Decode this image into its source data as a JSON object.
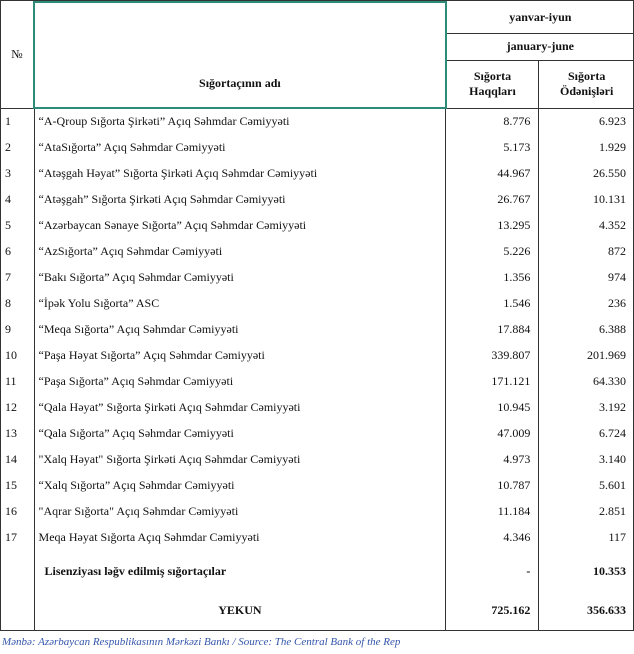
{
  "header": {
    "number": "№",
    "name": "Sığortaçının adı",
    "period_az": "yanvar-iyun",
    "period_en": "january-june",
    "premiums": "Sığorta Haqqları",
    "payments": "Sığorta Ödənişləri"
  },
  "table": {
    "rows": [
      [
        1,
        "“A-Qroup Sığorta Şirkəti” Açıq Səhmdar Cəmiyyəti",
        "8.776",
        "6.923"
      ],
      [
        2,
        "“AtaSığorta” Açıq Səhmdar Cəmiyyəti",
        "5.173",
        "1.929"
      ],
      [
        3,
        "“Atəşgah Həyat” Sığorta Şirkəti Açıq Səhmdar Cəmiyyəti",
        "44.967",
        "26.550"
      ],
      [
        4,
        "“Atəşgah” Sığorta Şirkəti Açıq Səhmdar Cəmiyyəti",
        "26.767",
        "10.131"
      ],
      [
        5,
        "“Azərbaycan Sənaye Sığorta” Açıq Səhmdar Cəmiyyəti",
        "13.295",
        "4.352"
      ],
      [
        6,
        "“AzSığorta” Açıq Səhmdar Cəmiyyəti",
        "5.226",
        "872"
      ],
      [
        7,
        "“Bakı Sığorta” Açıq Səhmdar Cəmiyyəti",
        "1.356",
        "974"
      ],
      [
        8,
        "“İpək Yolu Sığorta” ASC",
        "1.546",
        "236"
      ],
      [
        9,
        "“Meqa Sığorta” Açıq Səhmdar Cəmiyyəti",
        "17.884",
        "6.388"
      ],
      [
        10,
        "“Paşa Həyat Sığorta” Açıq Səhmdar Cəmiyyəti",
        "339.807",
        "201.969"
      ],
      [
        11,
        "“Paşa Sığorta” Açıq Səhmdar Cəmiyyəti",
        "171.121",
        "64.330"
      ],
      [
        12,
        "“Qala Həyat” Sığorta Şirkəti Açıq Səhmdar Cəmiyyəti",
        "10.945",
        "3.192"
      ],
      [
        13,
        "“Qala Sığorta” Açıq Səhmdar Cəmiyyəti",
        "47.009",
        "6.724"
      ],
      [
        14,
        "\"Xalq Həyat\" Sığorta Şirkəti Açıq Səhmdar Cəmiyyəti",
        "4.973",
        "3.140"
      ],
      [
        15,
        "“Xalq Sığorta” Açıq Səhmdar Cəmiyyəti",
        "10.787",
        "5.601"
      ],
      [
        16,
        "\"Aqrar Sığorta\" Açıq Səhmdar Cəmiyyəti",
        "11.184",
        "2.851"
      ],
      [
        17,
        "Meqa Həyat Sığorta Açıq Səhmdar Cəmiyyəti",
        "4.346",
        "117"
      ]
    ]
  },
  "revoked": {
    "label": "Lisenziyası ləğv edilmiş sığortaçılar",
    "premiums": "-",
    "payments": "10.353"
  },
  "total": {
    "label": "YEKUN",
    "premiums": "725.162",
    "payments": "356.633"
  },
  "source": {
    "az": "Mənbə: Azərbaycan Respublikasının Mərkəzi Bankı",
    "en": "/ Source: The Central Bank of the Rep"
  }
}
